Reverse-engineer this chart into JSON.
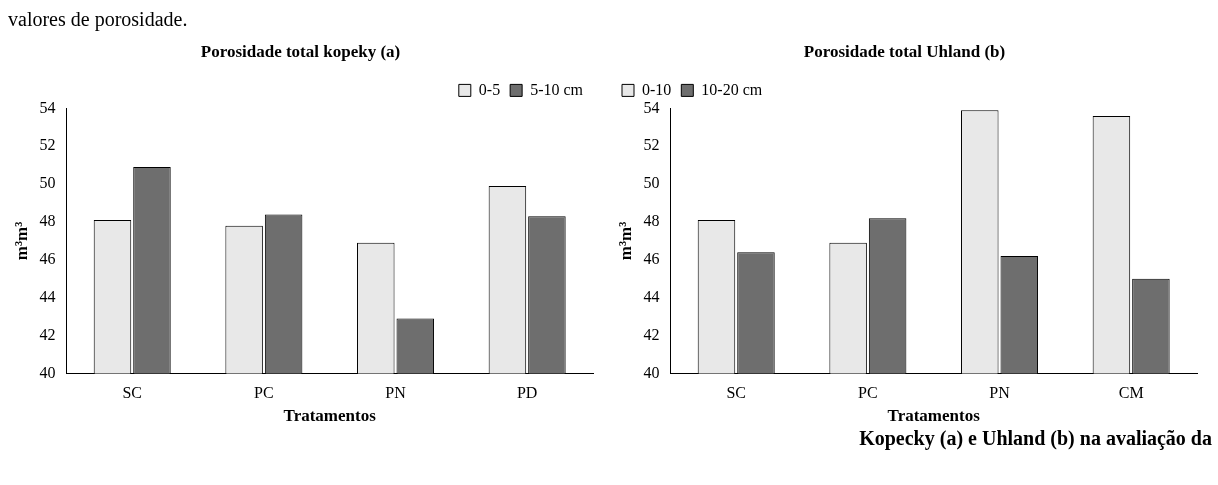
{
  "chart_data": [
    {
      "type": "bar",
      "title": "Porosidade total kopeky (a)",
      "xlabel": "Tratamentos",
      "ylabel": "m³m³",
      "categories": [
        "SC",
        "PC",
        "PN",
        "PD"
      ],
      "series": [
        {
          "name": "0-5",
          "color": "#e8e8e8",
          "values": [
            48.1,
            47.8,
            46.9,
            49.9
          ]
        },
        {
          "name": "5-10 cm",
          "color": "#6e6e6e",
          "values": [
            50.9,
            48.4,
            42.9,
            48.3
          ]
        }
      ],
      "ylim": [
        40,
        54
      ],
      "yticks": [
        40,
        42,
        44,
        46,
        48,
        50,
        52,
        54
      ],
      "grid": false,
      "legend": "top right",
      "annotations": [
        "valores de porosidade."
      ]
    },
    {
      "type": "bar",
      "title": "Porosidade total Uhland (b)",
      "xlabel": "Tratamentos",
      "ylabel": "m³m³",
      "categories": [
        "SC",
        "PC",
        "PN",
        "CM"
      ],
      "series": [
        {
          "name": "0-10",
          "color": "#e8e8e8",
          "values": [
            48.1,
            46.9,
            53.9,
            53.6
          ]
        },
        {
          "name": "10-20 cm",
          "color": "#6e6e6e",
          "values": [
            46.4,
            48.2,
            46.2,
            45.0
          ]
        }
      ],
      "ylim": [
        40,
        54
      ],
      "yticks": [
        40,
        42,
        44,
        46,
        48,
        50,
        52,
        54
      ],
      "grid": false,
      "legend": "top left",
      "annotations": [
        "Kopecky (a) e Uhland (b) na avaliação da"
      ]
    }
  ]
}
